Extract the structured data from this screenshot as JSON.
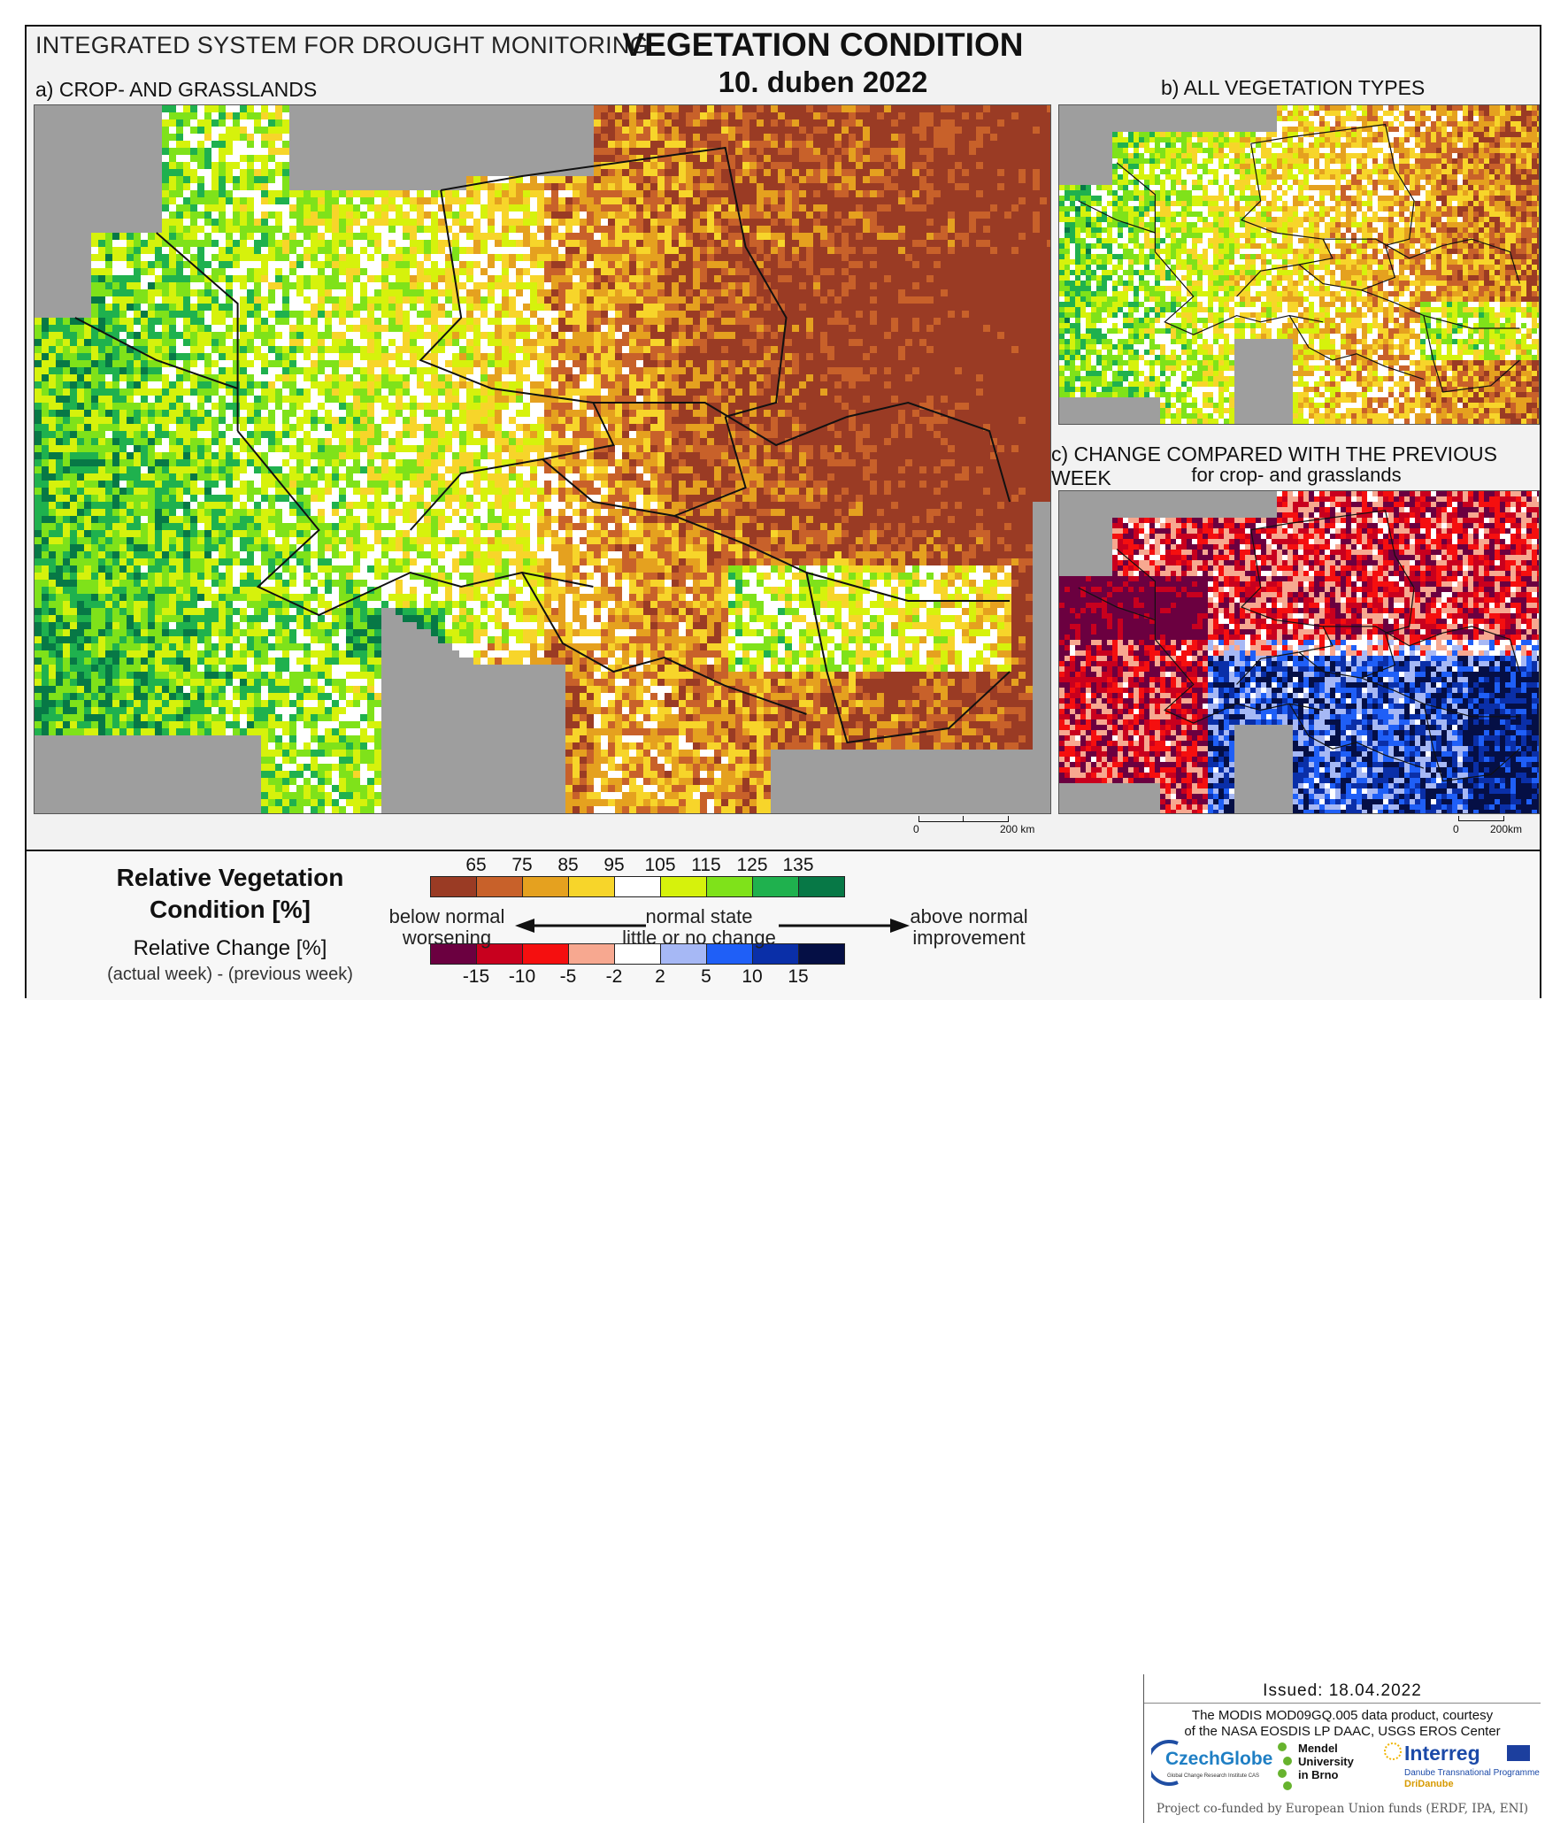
{
  "header": {
    "system_name": "INTEGRATED SYSTEM FOR DROUGHT MONITORING",
    "title": "VEGETATION CONDITION",
    "date": "10. duben 2022"
  },
  "panels": {
    "a_label": "a) CROP- AND GRASSLANDS",
    "b_label": "b) ALL VEGETATION TYPES",
    "c_label": "c) CHANGE COMPARED WITH THE PREVIOUS WEEK",
    "c_sublabel": "for crop- and grasslands"
  },
  "scalebars": {
    "a": {
      "start": "0",
      "end": "200 km"
    },
    "c": {
      "start": "0",
      "end": "200km"
    }
  },
  "legend": {
    "rvc_title_line1": "Relative Vegetation",
    "rvc_title_line2": "Condition [%]",
    "rc_title": "Relative Change [%]",
    "rc_subtitle": "(actual week) - (previous week)",
    "rvc_ticks": [
      "65",
      "75",
      "85",
      "95",
      "105",
      "115",
      "125",
      "135"
    ],
    "rvc_colors": [
      "#9a3b24",
      "#c8612a",
      "#e5a11f",
      "#f7d52a",
      "#ffffff",
      "#d6f20c",
      "#7fe21a",
      "#1fb14e",
      "#077846"
    ],
    "rc_ticks": [
      "-15",
      "-10",
      "-5",
      "-2",
      "2",
      "5",
      "10",
      "15"
    ],
    "rc_colors": [
      "#6b0040",
      "#c8001e",
      "#f50f0f",
      "#f7a890",
      "#ffffff",
      "#a6b8f5",
      "#1f5ff7",
      "#0a2fa8",
      "#050f45"
    ],
    "left_text_line1": "below normal",
    "left_text_line2": "worsening",
    "center_text_line1": "normal state",
    "center_text_line2": "little or no change",
    "right_text_line1": "above normal",
    "right_text_line2": "improvement"
  },
  "credits": {
    "issued": "Issued: 18.04.2022",
    "source_line1": "The MODIS MOD09GQ.005 data product, courtesy",
    "source_line2": "of the NASA EOSDIS LP DAAC, USGS EROS Center",
    "czechglobe": "CzechGlobe",
    "czechglobe_sub": "Global Change Research Institute CAS",
    "mendel_line1": "Mendel",
    "mendel_line2": "University",
    "mendel_line3": "in Brno",
    "interreg": "Interreg",
    "interreg_sub": "Danube Transnational Programme",
    "dridanube": "DriDanube",
    "funding": "Project co-funded by European Union funds (ERDF, IPA, ENI)"
  }
}
